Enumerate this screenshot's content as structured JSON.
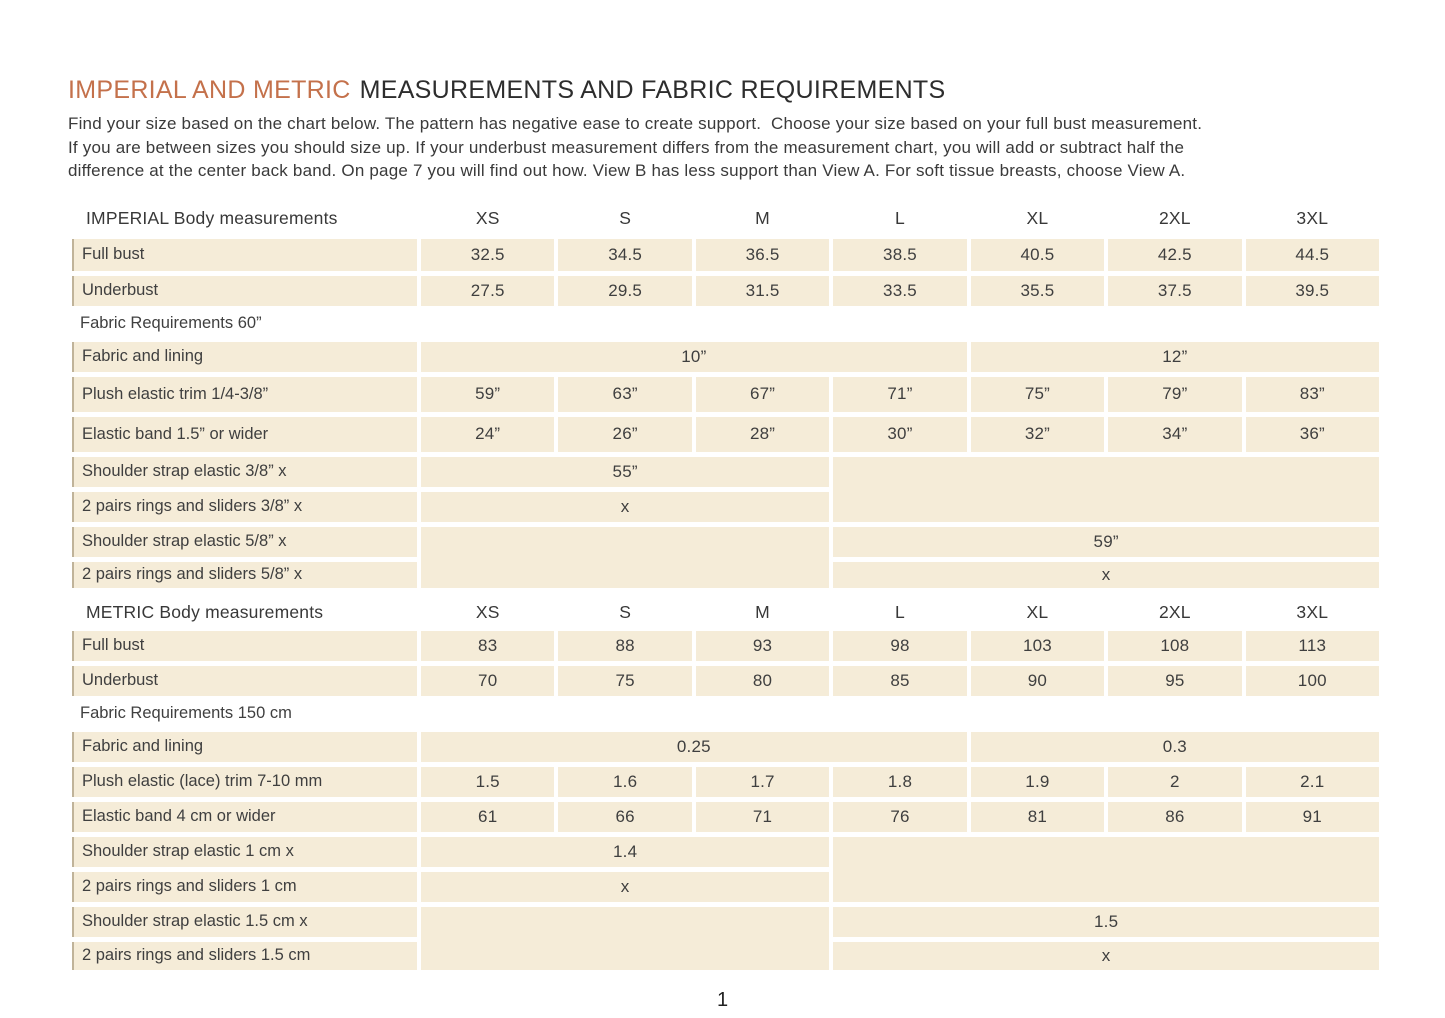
{
  "title": {
    "accent": "IMPERIAL AND METRIC",
    "rest": "MEASUREMENTS AND FABRIC REQUIREMENTS"
  },
  "intro_lines": [
    "Find your size based on the chart below. The pattern has negative ease to create support.  Choose your size based on your full bust measurement.",
    "If you are between sizes you should size up. If your underbust measurement differs from the measurement chart, you will add or subtract half the",
    "difference at the center back band. On page 7 you will find out how. View B has less support than View A. For soft tissue breasts, choose View A."
  ],
  "sizes": [
    "XS",
    "S",
    "M",
    "L",
    "XL",
    "2XL",
    "3XL"
  ],
  "imperial": {
    "section_title": "IMPERIAL Body measurements",
    "body_rows": [
      {
        "label": "Full bust",
        "values": [
          "32.5",
          "34.5",
          "36.5",
          "38.5",
          "40.5",
          "42.5",
          "44.5"
        ]
      },
      {
        "label": "Underbust",
        "values": [
          "27.5",
          "29.5",
          "31.5",
          "33.5",
          "35.5",
          "37.5",
          "39.5"
        ]
      }
    ],
    "fabric_title": "Fabric Requirements 60”",
    "fabric_lining": {
      "label": "Fabric and lining",
      "small_sizes": "10”",
      "large_sizes": "12”"
    },
    "trim_row": {
      "label": "Plush elastic trim 1/4-3/8”",
      "values": [
        "59”",
        "63”",
        "67”",
        "71”",
        "75”",
        "79”",
        "83”"
      ]
    },
    "band_row": {
      "label": "Elastic band 1.5” or wider",
      "values": [
        "24”",
        "26”",
        "28”",
        "30”",
        "32”",
        "34”",
        "36”"
      ]
    },
    "strap_small": {
      "label": "Shoulder strap elastic 3/8” x",
      "value": "55”"
    },
    "rings_small": {
      "label": "2 pairs rings and sliders 3/8” x",
      "value": "x"
    },
    "strap_large": {
      "label": "Shoulder strap elastic 5/8” x",
      "value": "59”"
    },
    "rings_large": {
      "label": "2 pairs rings and sliders 5/8” x",
      "value": "x"
    }
  },
  "metric": {
    "section_title": "METRIC Body measurements",
    "body_rows": [
      {
        "label": "Full bust",
        "values": [
          "83",
          "88",
          "93",
          "98",
          "103",
          "108",
          "113"
        ]
      },
      {
        "label": "Underbust",
        "values": [
          "70",
          "75",
          "80",
          "85",
          "90",
          "95",
          "100"
        ]
      }
    ],
    "fabric_title": "Fabric Requirements 150 cm",
    "fabric_lining": {
      "label": "Fabric and lining",
      "small_sizes": "0.25",
      "large_sizes": "0.3"
    },
    "trim_row": {
      "label": "Plush elastic (lace) trim 7-10 mm",
      "values": [
        "1.5",
        "1.6",
        "1.7",
        "1.8",
        "1.9",
        "2",
        "2.1"
      ]
    },
    "band_row": {
      "label": "Elastic band 4 cm or wider",
      "values": [
        "61",
        "66",
        "71",
        "76",
        "81",
        "86",
        "91"
      ]
    },
    "strap_small": {
      "label": "Shoulder strap elastic 1 cm x",
      "value": "1.4"
    },
    "rings_small": {
      "label": "2 pairs rings and sliders 1 cm",
      "value": "x"
    },
    "strap_large": {
      "label": "Shoulder strap elastic 1.5 cm x",
      "value": "1.5"
    },
    "rings_large": {
      "label": "2 pairs rings and sliders 1.5 cm",
      "value": "x"
    }
  },
  "footer": {
    "page_number": "1"
  },
  "colors": {
    "accent": "#c4714b",
    "row_bg": "#f5ecd8",
    "text": "#3c3c3c"
  }
}
